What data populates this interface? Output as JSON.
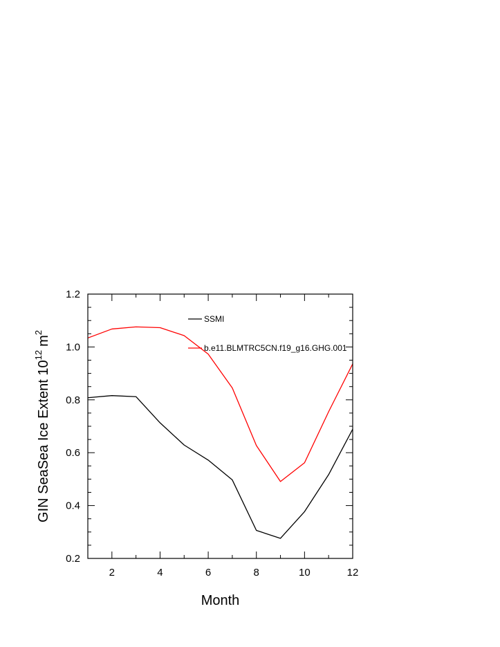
{
  "chart_data": {
    "type": "line",
    "title": "",
    "xlabel": "Month",
    "ylabel": "GIN SeaSea Ice Extent 10",
    "ylabel_exp": "12",
    "ylabel_unit": "m",
    "ylabel_unit_exp": "2",
    "xlim": [
      1,
      12
    ],
    "ylim": [
      0.2,
      1.2
    ],
    "xticks": [
      2,
      4,
      6,
      8,
      10,
      12
    ],
    "xtick_labels": [
      "2",
      "4",
      "6",
      "8",
      "10",
      "12"
    ],
    "yticks": [
      0.2,
      0.4,
      0.6,
      0.8,
      1.0,
      1.2
    ],
    "ytick_labels": [
      "0.2",
      "0.4",
      "0.6",
      "0.8",
      "1.0",
      "1.2"
    ],
    "x": [
      1,
      2,
      3,
      4,
      5,
      6,
      7,
      8,
      9,
      10,
      11,
      12
    ],
    "grid": false,
    "legend_position": "top-right",
    "series": [
      {
        "name": "SSMI",
        "color": "#000000",
        "values": [
          0.808,
          0.816,
          0.812,
          0.713,
          0.629,
          0.572,
          0.497,
          0.306,
          0.276,
          0.377,
          0.517,
          0.689
        ]
      },
      {
        "name": "b.e11.BLMTRC5CN.f19_g16.GHG.001",
        "color": "#ff0000",
        "values": [
          1.034,
          1.068,
          1.076,
          1.073,
          1.043,
          0.973,
          0.845,
          0.627,
          0.491,
          0.562,
          0.755,
          0.936
        ]
      }
    ]
  }
}
